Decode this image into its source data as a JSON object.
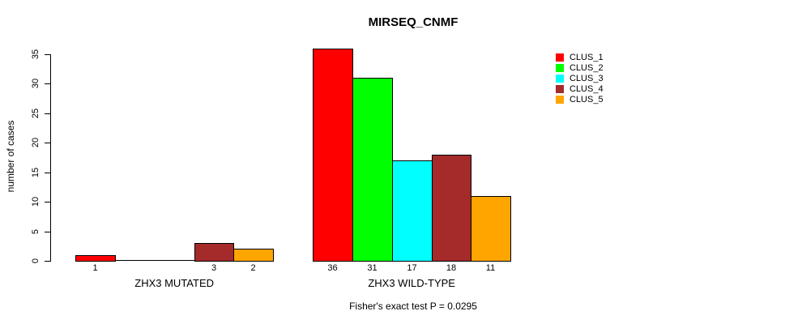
{
  "chart_data": {
    "type": "bar",
    "title": "MIRSEQ_CNMF",
    "ylabel": "number of cases",
    "ylim": [
      0,
      35
    ],
    "yticks": [
      0,
      5,
      10,
      15,
      20,
      25,
      30,
      35
    ],
    "grid": false,
    "legend_position": "top-right",
    "categories": [
      "ZHX3 MUTATED",
      "ZHX3 WILD-TYPE"
    ],
    "series": [
      {
        "name": "CLUS_1",
        "color": "#ff0000",
        "values": [
          1,
          36
        ]
      },
      {
        "name": "CLUS_2",
        "color": "#00ff00",
        "values": [
          0,
          31
        ]
      },
      {
        "name": "CLUS_3",
        "color": "#00ffff",
        "values": [
          0,
          17
        ]
      },
      {
        "name": "CLUS_4",
        "color": "#a52a2a",
        "values": [
          3,
          18
        ]
      },
      {
        "name": "CLUS_5",
        "color": "#ffa500",
        "values": [
          2,
          11
        ]
      }
    ],
    "bar_value_labels": {
      "ZHX3 MUTATED": [
        1,
        0,
        0,
        3,
        2
      ],
      "ZHX3 WILD-TYPE": [
        36,
        31,
        17,
        18,
        11
      ]
    },
    "annotation": "Fisher's exact test P = 0.0295",
    "axis_color": "#000000",
    "bar_border_color": "#000000",
    "background_color": "#ffffff"
  }
}
